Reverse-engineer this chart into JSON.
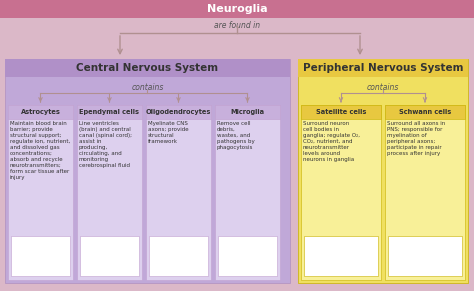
{
  "title": "Neuroglia",
  "are_found_in": "are found in",
  "contains": "contains",
  "bg_color": "#dbb8c8",
  "top_bar_color": "#c87090",
  "cns_box_color": "#c0a8d8",
  "cns_header_color": "#b090c8",
  "cns_cell_color": "#ddd0ee",
  "pns_box_color": "#f0e060",
  "pns_header_color": "#e8c840",
  "pns_cell_color": "#f8f098",
  "cell_header_bg_cns": "#c8b0dc",
  "cell_header_bg_pns": "#e8c840",
  "white": "#ffffff",
  "cns_title": "Central Nervous System",
  "pns_title": "Peripheral Nervous System",
  "cns_cells": [
    "Astrocytes",
    "Ependymal cells",
    "Oligodendrocytes",
    "Microglia"
  ],
  "pns_cells": [
    "Satellite cells",
    "Schwann cells"
  ],
  "cns_descriptions": [
    "Maintain blood brain\nbarrier; provide\nstructural support;\nregulate ion, nutrient,\nand dissolved gas\nconcentrations;\nabsorb and recycle\nneurotransmitters;\nform scar tissue after\ninjury",
    "Line ventricles\n(brain) and central\ncanal (spinal cord);\nassist in\nproducing,\ncirculating, and\nmonitoring\ncerebrospinal fluid",
    "Myelinate CNS\naxons; provide\nstructural\nframework",
    "Remove cell\ndebris,\nwastes, and\npathogens by\nphagocytosis"
  ],
  "pns_descriptions": [
    "Surround neuron\ncell bodies in\nganglia; regulate O₂,\nCO₂, nutrient, and\nneurotransmitter\nlevels around\nneurons in ganglia",
    "Surround all axons in\nPNS; responsible for\nmyelination of\nperipheral axons;\nparticipate in repair\nprocess after injury"
  ],
  "figw": 4.74,
  "figh": 2.91,
  "dpi": 100
}
